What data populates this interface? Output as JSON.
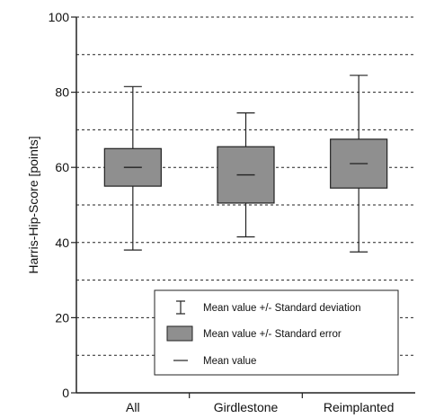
{
  "chart_data": {
    "type": "box",
    "ylabel": "Harris-Hip-Score [points]",
    "xlabel": "",
    "ylim": [
      0,
      100
    ],
    "yticks": [
      0,
      20,
      40,
      60,
      80,
      100
    ],
    "grid": {
      "y_dashed_every": 10
    },
    "categories": [
      "All",
      "Girdlestone",
      "Reimplanted"
    ],
    "boxes": [
      {
        "category": "All",
        "mean": 60,
        "se_low": 55,
        "se_high": 65,
        "sd_low": 38,
        "sd_high": 81.5
      },
      {
        "category": "Girdlestone",
        "mean": 58,
        "se_low": 50.5,
        "se_high": 65.5,
        "sd_low": 41.5,
        "sd_high": 74.5
      },
      {
        "category": "Reimplanted",
        "mean": 61,
        "se_low": 54.5,
        "se_high": 67.5,
        "sd_low": 37.5,
        "sd_high": 84.5
      }
    ],
    "legend": {
      "position": "bottom-right",
      "entries": [
        {
          "symbol": "errorbar",
          "label": "Mean value +/- Standard deviation"
        },
        {
          "symbol": "box",
          "label": "Mean value +/- Standard error"
        },
        {
          "symbol": "line",
          "label": "Mean value"
        }
      ]
    },
    "colors": {
      "box_fill": "#8f8f8f",
      "line": "#222222",
      "grid": "#222222"
    }
  }
}
